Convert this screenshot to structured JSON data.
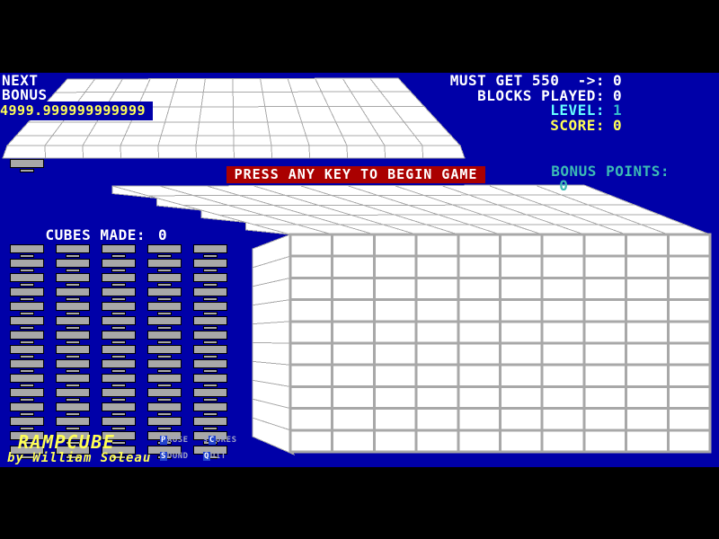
{
  "title": "RAMPCUBE",
  "colors": {
    "background": "#0000A8",
    "letterbox": "#000000",
    "surface_white": "#FFFFFF",
    "grid_line": "#A8A8A8",
    "block_gray": "#A8A8A8",
    "banner_red": "#AA0000",
    "text_white": "#FFFFFF",
    "text_yellow": "#FFFF55",
    "text_cyan_light": "#66FFFF",
    "text_cyan_value": "#33BBCC",
    "text_teal": "#3CBBB4",
    "menu_dim": "#9EA2C6",
    "menu_hotkey_bg": "#2244CC"
  },
  "hud": {
    "next_label": "NEXT",
    "bonus_label": "BONUS",
    "bonus_value": "4999.999999999999",
    "stats": [
      {
        "label": "MUST GET 550  ->:",
        "value": "0"
      },
      {
        "label": "BLOCKS PLAYED:",
        "value": "0"
      },
      {
        "label": "LEVEL:",
        "value": "1"
      },
      {
        "label": "SCORE:",
        "value": "0"
      }
    ],
    "bonus_points_label": "BONUS POINTS:",
    "bonus_points_value": "0",
    "banner": "PRESS ANY KEY TO BEGIN GAME",
    "cubes_made_label": "CUBES MADE:",
    "cubes_made_value": "0"
  },
  "board": {
    "grid_rows": 10,
    "grid_cols": 10,
    "block_columns": 5,
    "blocks_per_column": 15,
    "ramp_cols": 12,
    "ramp_rows": 5
  },
  "footer": {
    "logo": "RAMPCUBE",
    "byline": "by William Soleau",
    "menu": [
      {
        "pre": "",
        "hot": "P",
        "post": "AUSE"
      },
      {
        "pre": "s",
        "hot": "C",
        "post": "ORES"
      },
      {
        "pre": "",
        "hot": "S",
        "post": "OUND"
      },
      {
        "pre": "",
        "hot": "Q",
        "post": "UIT"
      }
    ]
  }
}
